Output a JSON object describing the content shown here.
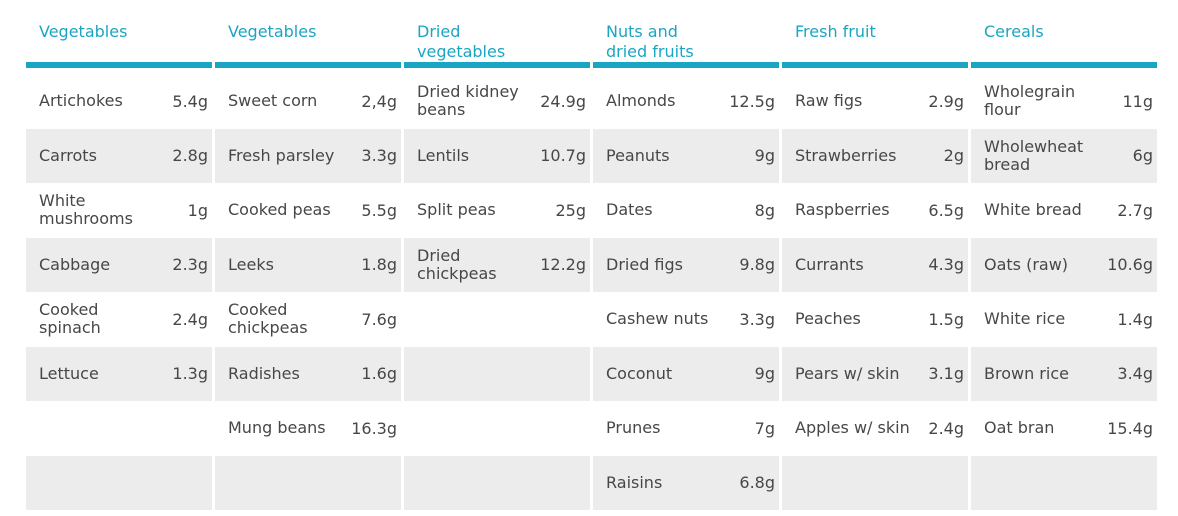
{
  "columns": [
    {
      "header": "Vegetables",
      "rows": [
        {
          "item": "Artichokes",
          "value": "5.4g"
        },
        {
          "item": "Carrots",
          "value": "2.8g"
        },
        {
          "item": "White mushrooms",
          "value": "1g"
        },
        {
          "item": "Cabbage",
          "value": "2.3g"
        },
        {
          "item": "Cooked spinach",
          "value": "2.4g"
        },
        {
          "item": "Lettuce",
          "value": "1.3g"
        },
        {
          "item": "",
          "value": ""
        },
        {
          "item": "",
          "value": ""
        }
      ]
    },
    {
      "header": "Vegetables",
      "rows": [
        {
          "item": "Sweet corn",
          "value": "2,4g"
        },
        {
          "item": "Fresh parsley",
          "value": "3.3g"
        },
        {
          "item": "Cooked peas",
          "value": "5.5g"
        },
        {
          "item": "Leeks",
          "value": "1.8g"
        },
        {
          "item": "Cooked chickpeas",
          "value": "7.6g"
        },
        {
          "item": "Radishes",
          "value": "1.6g"
        },
        {
          "item": "Mung beans",
          "value": "16.3g"
        },
        {
          "item": "",
          "value": ""
        }
      ]
    },
    {
      "header": "Dried vegetables",
      "rows": [
        {
          "item": "Dried kidney beans",
          "value": "24.9g"
        },
        {
          "item": "Lentils",
          "value": "10.7g"
        },
        {
          "item": "Split peas",
          "value": "25g"
        },
        {
          "item": "Dried chickpeas",
          "value": "12.2g"
        },
        {
          "item": "",
          "value": ""
        },
        {
          "item": "",
          "value": ""
        },
        {
          "item": "",
          "value": ""
        },
        {
          "item": "",
          "value": ""
        }
      ]
    },
    {
      "header": "Nuts and dried fruits",
      "rows": [
        {
          "item": "Almonds",
          "value": "12.5g"
        },
        {
          "item": "Peanuts",
          "value": "9g"
        },
        {
          "item": "Dates",
          "value": "8g"
        },
        {
          "item": "Dried figs",
          "value": "9.8g"
        },
        {
          "item": "Cashew nuts",
          "value": "3.3g"
        },
        {
          "item": "Coconut",
          "value": "9g"
        },
        {
          "item": "Prunes",
          "value": "7g"
        },
        {
          "item": "Raisins",
          "value": "6.8g"
        }
      ]
    },
    {
      "header": "Fresh fruit",
      "rows": [
        {
          "item": "Raw figs",
          "value": "2.9g"
        },
        {
          "item": "Strawberries",
          "value": "2g"
        },
        {
          "item": "Raspberries",
          "value": "6.5g"
        },
        {
          "item": "Currants",
          "value": "4.3g"
        },
        {
          "item": "Peaches",
          "value": "1.5g"
        },
        {
          "item": "Pears w/ skin",
          "value": "3.1g"
        },
        {
          "item": "Apples w/ skin",
          "value": "2.4g"
        },
        {
          "item": "",
          "value": ""
        }
      ]
    },
    {
      "header": "Cereals",
      "rows": [
        {
          "item": "Wholegrain flour",
          "value": "11g"
        },
        {
          "item": "Wholewheat bread",
          "value": "6g"
        },
        {
          "item": "White bread",
          "value": "2.7g"
        },
        {
          "item": "Oats (raw)",
          "value": "10.6g"
        },
        {
          "item": "White rice",
          "value": "1.4g"
        },
        {
          "item": "Brown rice",
          "value": "3.4g"
        },
        {
          "item": "Oat bran",
          "value": "15.4g"
        },
        {
          "item": "",
          "value": ""
        }
      ]
    }
  ],
  "colors": {
    "accent": "#1aa6c2",
    "row_shade": "#ececec",
    "text": "#474747"
  }
}
